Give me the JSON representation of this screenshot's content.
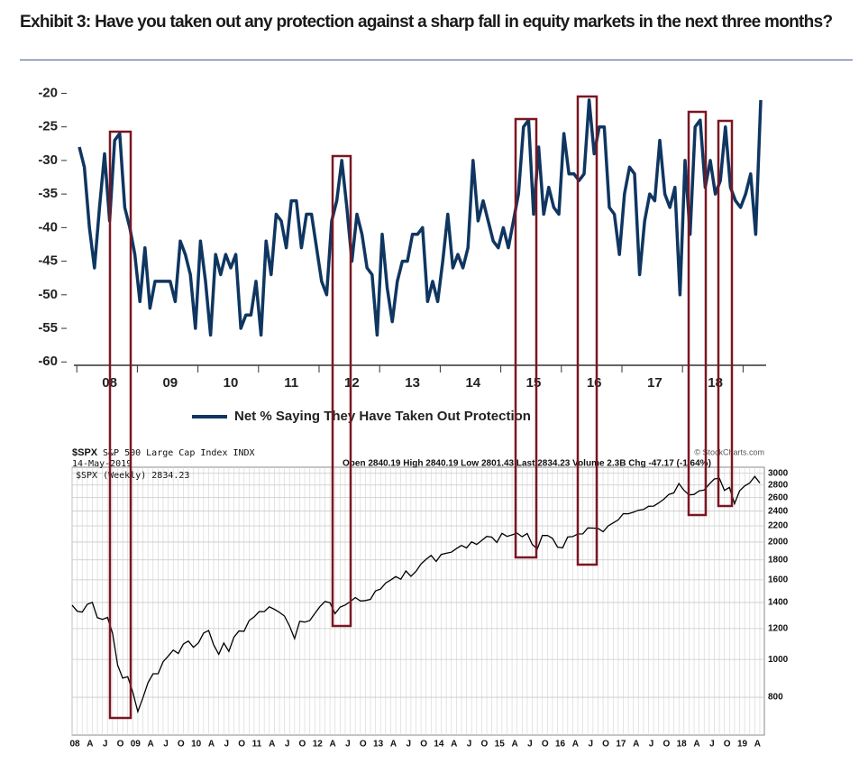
{
  "chart_data": [
    {
      "type": "line",
      "title": "Exhibit 3: Have you taken out any protection against a sharp fall in equity markets in the next three months?",
      "categories": [
        null,
        null,
        null,
        null,
        null,
        null,
        "08",
        null,
        null,
        null,
        null,
        null,
        null,
        null,
        null,
        null,
        null,
        null,
        "09",
        null,
        null,
        null,
        null,
        null,
        null,
        null,
        null,
        null,
        null,
        null,
        "10",
        null,
        null,
        null,
        null,
        null,
        null,
        null,
        null,
        null,
        null,
        null,
        "11",
        null,
        null,
        null,
        null,
        null,
        null,
        null,
        null,
        null,
        null,
        null,
        "12",
        null,
        null,
        null,
        null,
        null,
        null,
        null,
        null,
        null,
        null,
        null,
        "13",
        null,
        null,
        null,
        null,
        null,
        null,
        null,
        null,
        null,
        null,
        null,
        "14",
        null,
        null,
        null,
        null,
        null,
        null,
        null,
        null,
        null,
        null,
        null,
        "15",
        null,
        null,
        null,
        null,
        null,
        null,
        null,
        null,
        null,
        null,
        null,
        "16",
        null,
        null,
        null,
        null,
        null,
        null,
        null,
        null,
        null,
        null,
        null,
        "17",
        null,
        null,
        null,
        null,
        null,
        null,
        null,
        null,
        null,
        null,
        null,
        "18",
        null,
        null,
        null,
        null,
        null,
        null,
        null,
        null,
        null
      ],
      "series": [
        {
          "name": "Net % Saying They Have Taken Out Protection",
          "color": "#0f3661",
          "values": [
            -28,
            -31,
            -40,
            -46,
            -37,
            -29,
            -39,
            -27,
            -26,
            -37,
            -40,
            -44,
            -51,
            -43,
            -52,
            -48,
            -48,
            -48,
            -48,
            -51,
            -42,
            -44,
            -47,
            -55,
            -42,
            -48,
            -56,
            -44,
            -47,
            -44,
            -46,
            -44,
            -55,
            -53,
            -53,
            -48,
            -56,
            -42,
            -47,
            -38,
            -39,
            -43,
            -36,
            -36,
            -43,
            -38,
            -38,
            -43,
            -48,
            -50,
            -39,
            -36,
            -30,
            -37,
            -45,
            -38,
            -41,
            -46,
            -47,
            -56,
            -41,
            -49,
            -54,
            -48,
            -45,
            -45,
            -41,
            -41,
            -40,
            -51,
            -48,
            -51,
            -45,
            -38,
            -46,
            -44,
            -46,
            -43,
            -30,
            -39,
            -36,
            -39,
            -42,
            -43,
            -40,
            -43,
            -39,
            -35,
            -25,
            -24,
            -38,
            -28,
            -38,
            -34,
            -37,
            -38,
            -26,
            -32,
            -32,
            -33,
            -32,
            -21,
            -29,
            -25,
            -25,
            -37,
            -38,
            -44,
            -35,
            -31,
            -32,
            -47,
            -39,
            -35,
            -36,
            -27,
            -35,
            -37,
            -34,
            -50,
            -30,
            -41,
            -25,
            -24,
            -34,
            -30,
            -35,
            -33,
            -25,
            -34,
            -36,
            -37,
            -35,
            -32,
            -41,
            -21
          ]
        }
      ],
      "ylim": [
        -60.5,
        -19
      ],
      "yticks": [
        -20,
        -25,
        -30,
        -35,
        -40,
        -45,
        -50,
        -55,
        -60
      ],
      "legend": "bottom"
    },
    {
      "type": "line",
      "title": "$SPX",
      "subtitle": "S&P 500 Large Cap Index INDX",
      "date": "14-May-2019",
      "annotations": [
        "Open 2840.19 High 2840.19 Low 2801.43 Last 2834.23 Volume 2.3B Chg -47.17 (-1.64%)",
        "© StockCharts.com"
      ],
      "categories": [
        "08",
        null,
        null,
        "A",
        null,
        null,
        "J",
        null,
        null,
        "O",
        null,
        null,
        "09",
        null,
        null,
        "A",
        null,
        null,
        "J",
        null,
        null,
        "O",
        null,
        null,
        "10",
        null,
        null,
        "A",
        null,
        null,
        "J",
        null,
        null,
        "O",
        null,
        null,
        "11",
        null,
        null,
        "A",
        null,
        null,
        "J",
        null,
        null,
        "O",
        null,
        null,
        "12",
        null,
        null,
        "A",
        null,
        null,
        "J",
        null,
        null,
        "O",
        null,
        null,
        "13",
        null,
        null,
        "A",
        null,
        null,
        "J",
        null,
        null,
        "O",
        null,
        null,
        "14",
        null,
        null,
        "A",
        null,
        null,
        "J",
        null,
        null,
        "O",
        null,
        null,
        "15",
        null,
        null,
        "A",
        null,
        null,
        "J",
        null,
        null,
        "O",
        null,
        null,
        "16",
        null,
        null,
        "A",
        null,
        null,
        "J",
        null,
        null,
        "O",
        null,
        null,
        "17",
        null,
        null,
        "A",
        null,
        null,
        "J",
        null,
        null,
        "O",
        null,
        null,
        "18",
        null,
        null,
        "A",
        null,
        null,
        "J",
        null,
        null,
        "O",
        null,
        null,
        "19",
        null,
        null,
        "A",
        null
      ],
      "series": [
        {
          "name": "$SPX (Weekly) 2834.23",
          "color": "#000000",
          "values": [
            1378,
            1330,
            1322,
            1385,
            1400,
            1280,
            1267,
            1282,
            1166,
            968,
            896,
            903,
            825,
            735,
            797,
            872,
            919,
            919,
            987,
            1020,
            1057,
            1036,
            1095,
            1115,
            1074,
            1104,
            1169,
            1187,
            1089,
            1031,
            1102,
            1049,
            1141,
            1183,
            1181,
            1258,
            1286,
            1327,
            1326,
            1364,
            1345,
            1321,
            1292,
            1219,
            1131,
            1253,
            1247,
            1258,
            1312,
            1366,
            1408,
            1398,
            1310,
            1362,
            1379,
            1407,
            1441,
            1412,
            1416,
            1426,
            1498,
            1515,
            1569,
            1598,
            1631,
            1606,
            1686,
            1633,
            1682,
            1757,
            1806,
            1848,
            1783,
            1859,
            1872,
            1884,
            1924,
            1960,
            1931,
            2003,
            1972,
            2018,
            2068,
            2059,
            1995,
            2105,
            2068,
            2086,
            2107,
            2063,
            2104,
            1972,
            1920,
            2079,
            2080,
            2044,
            1940,
            1932,
            2060,
            2065,
            2097,
            2099,
            2174,
            2171,
            2168,
            2126,
            2199,
            2239,
            2279,
            2364,
            2363,
            2384,
            2412,
            2423,
            2470,
            2472,
            2519,
            2575,
            2648,
            2674,
            2824,
            2714,
            2641,
            2648,
            2705,
            2718,
            2816,
            2902,
            2914,
            2712,
            2760,
            2507,
            2704,
            2784,
            2834,
            2946,
            2834
          ]
        }
      ],
      "ylim": [
        640,
        3110
      ],
      "yticks": [
        800,
        1000,
        1200,
        1400,
        1600,
        1800,
        2000,
        2200,
        2400,
        2600,
        2800,
        3000
      ],
      "log": true,
      "grid": true
    }
  ]
}
